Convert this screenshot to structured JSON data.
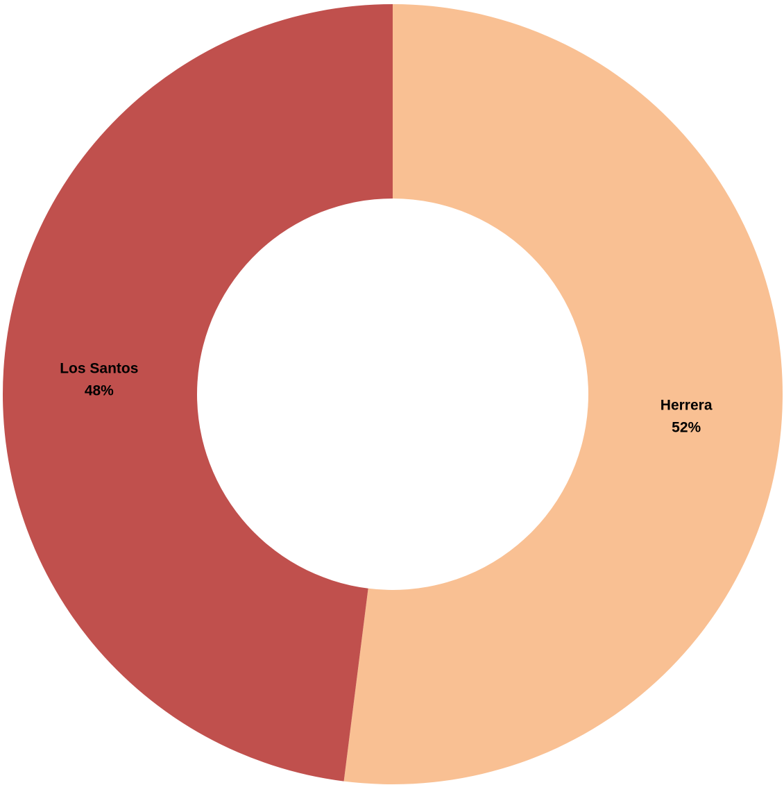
{
  "chart_data": {
    "type": "pie",
    "variant": "donut",
    "categories": [
      "Herrera",
      "Los Santos"
    ],
    "values": [
      52,
      48
    ],
    "labels": [
      {
        "category": "Herrera",
        "percent": "52%"
      },
      {
        "category": "Los Santos",
        "percent": "48%"
      }
    ],
    "colors": [
      "#F9C093",
      "#C0504D"
    ],
    "title": "",
    "legend": "none",
    "start_direction": "top",
    "direction": "clockwise"
  }
}
